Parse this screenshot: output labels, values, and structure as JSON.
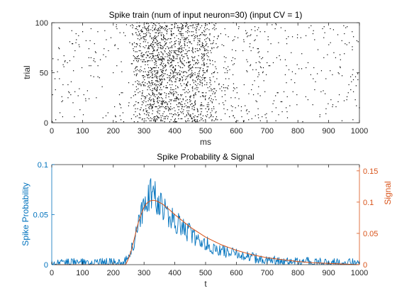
{
  "chart_data": [
    {
      "type": "scatter",
      "title": "Spike train (num of input neuron=30) (input CV = 1)",
      "xlabel": "ms",
      "ylabel": "trial",
      "xlim": [
        0,
        1000
      ],
      "ylim": [
        0,
        100
      ],
      "x_ticks": [
        0,
        100,
        200,
        300,
        400,
        500,
        600,
        700,
        800,
        900,
        1000
      ],
      "y_ticks": [
        0,
        50,
        100
      ],
      "marker": "dot",
      "point_color": "#000000",
      "background_spike_rate_per_trial_per_ms": 0.006,
      "burst_window_ms": [
        260,
        530
      ],
      "spike_density_profile": {
        "x": [
          0,
          100,
          200,
          255,
          270,
          300,
          330,
          370,
          420,
          470,
          500,
          520,
          540,
          600,
          700,
          800,
          900,
          1000
        ],
        "probability": [
          0.004,
          0.004,
          0.004,
          0.004,
          0.035,
          0.06,
          0.075,
          0.07,
          0.06,
          0.05,
          0.045,
          0.04,
          0.012,
          0.01,
          0.007,
          0.006,
          0.005,
          0.005
        ]
      }
    },
    {
      "type": "line",
      "title": "Spike Probability & Signal",
      "xlabel": "t",
      "ylabel_left": "Spike Probability",
      "ylabel_right": "Signal",
      "xlim": [
        0,
        1000
      ],
      "ylim_left": [
        0,
        0.1
      ],
      "ylim_right": [
        0,
        0.16
      ],
      "x_ticks": [
        0,
        100,
        200,
        300,
        400,
        500,
        600,
        700,
        800,
        900,
        1000
      ],
      "y_ticks_left": [
        "0",
        "0.05",
        "0.1"
      ],
      "y_ticks_right": [
        "0",
        "0.05",
        "0.1",
        "0.15"
      ],
      "colors": {
        "left_axis": "#0072BD",
        "right_axis": "#D95319"
      },
      "series": [
        {
          "axis": "left",
          "color": "#0072BD",
          "x": [
            0,
            50,
            100,
            150,
            200,
            230,
            250,
            270,
            290,
            310,
            320,
            330,
            340,
            360,
            380,
            400,
            420,
            450,
            480,
            500,
            550,
            600,
            650,
            700,
            750,
            800,
            850,
            900,
            950,
            1000
          ],
          "values": [
            0.002,
            0.002,
            0.002,
            0.002,
            0.002,
            0.002,
            0.006,
            0.025,
            0.05,
            0.068,
            0.072,
            0.07,
            0.066,
            0.058,
            0.05,
            0.044,
            0.038,
            0.031,
            0.025,
            0.021,
            0.014,
            0.01,
            0.007,
            0.005,
            0.004,
            0.003,
            0.003,
            0.002,
            0.002,
            0.002
          ],
          "noise_amplitude": 0.004
        },
        {
          "axis": "right",
          "color": "#D95319",
          "x": [
            0,
            100,
            200,
            240,
            250,
            260,
            270,
            280,
            290,
            300,
            310,
            320,
            330,
            340,
            360,
            380,
            400,
            450,
            500,
            550,
            600,
            650,
            700,
            750,
            800,
            850,
            900,
            950,
            1000
          ],
          "values": [
            0,
            0,
            0,
            0,
            0.01,
            0.025,
            0.045,
            0.065,
            0.08,
            0.092,
            0.099,
            0.102,
            0.103,
            0.102,
            0.097,
            0.089,
            0.08,
            0.06,
            0.044,
            0.032,
            0.023,
            0.016,
            0.011,
            0.008,
            0.005,
            0.003,
            0.002,
            0.001,
            0
          ]
        }
      ]
    }
  ]
}
